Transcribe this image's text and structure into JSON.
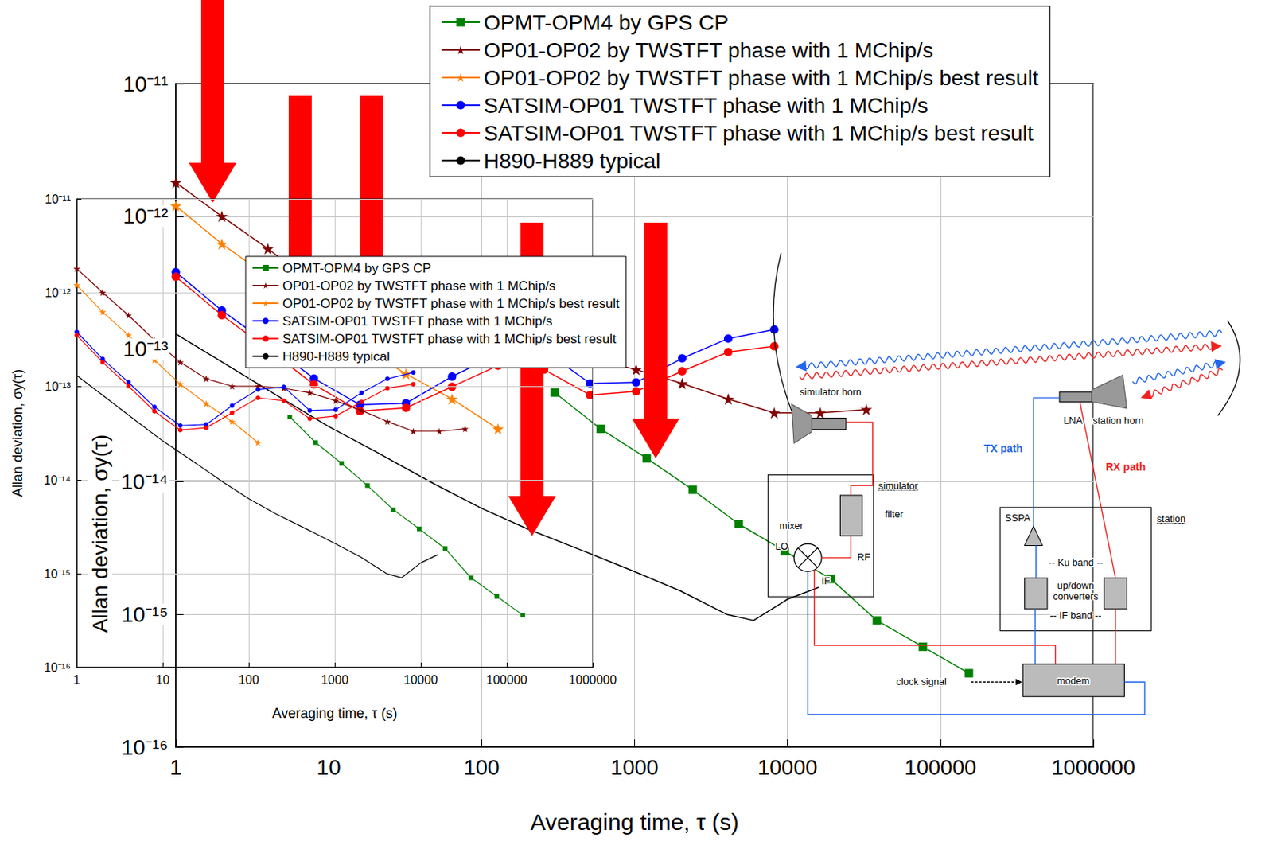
{
  "chart_data": [
    {
      "type": "line",
      "xlabel": "Averaging time, τ (s)",
      "ylabel": "Allan deviation, σy(τ)",
      "log": true,
      "grid": true,
      "legend": "top right",
      "xlim": [
        1,
        1000000
      ],
      "ylim": [
        1e-16,
        1e-11
      ],
      "xticks": [
        1,
        10,
        100,
        1000,
        10000,
        100000,
        1000000
      ],
      "yticks": [
        {
          "value": 1e-16,
          "label": "10⁻¹⁶"
        },
        {
          "value": 1e-15,
          "label": "10⁻¹⁵"
        },
        {
          "value": 1e-14,
          "label": "10⁻¹⁴"
        },
        {
          "value": 1e-13,
          "label": "10⁻¹³"
        },
        {
          "value": 1e-12,
          "label": "10⁻¹²"
        },
        {
          "value": 1e-11,
          "label": "10⁻¹¹"
        }
      ],
      "series": [
        {
          "name": "OPMT-OPM4 by GPS CP",
          "color": "#008000",
          "marker": "square",
          "x": [
            300,
            600,
            1200,
            2400,
            4800,
            9600,
            19200,
            38400,
            76800,
            153600
          ],
          "values": [
            4.7e-14,
            2.5e-14,
            1.5e-14,
            8.7e-15,
            4.8e-15,
            3e-15,
            1.85e-15,
            9e-16,
            5.7e-16,
            3.6e-16
          ]
        },
        {
          "name": "OP01-OP02 by TWSTFT phase with 1 MChip/s",
          "color": "#800000",
          "marker": "star",
          "x": [
            1,
            2,
            4,
            8,
            16,
            32,
            64,
            128,
            256,
            512,
            1024,
            2048,
            4096,
            8192,
            16384,
            32768
          ],
          "values": [
            1.8e-12,
            1e-12,
            5.7e-13,
            3.1e-13,
            1.8e-13,
            1.2e-13,
            1e-13,
            1e-13,
            9.5e-14,
            8.5e-14,
            7e-14,
            5.5e-14,
            4.2e-14,
            3.3e-14,
            3.3e-14,
            3.5e-14
          ]
        },
        {
          "name": "OP01-OP02 by TWSTFT phase with 1 MChip/s best result",
          "color": "#ff8000",
          "marker": "star",
          "x": [
            1,
            2,
            4,
            8,
            16,
            32,
            64,
            128
          ],
          "values": [
            1.2e-12,
            6.2e-13,
            3.5e-13,
            1.9e-13,
            1.05e-13,
            6.5e-14,
            4.2e-14,
            2.5e-14
          ]
        },
        {
          "name": "SATSIM-OP01 TWSTFT phase with 1 MChip/s",
          "color": "#0000ff",
          "marker": "circle",
          "x": [
            1,
            2,
            4,
            8,
            16,
            32,
            64,
            128,
            256,
            512,
            1024,
            2048,
            4096,
            8192
          ],
          "values": [
            3.8e-13,
            1.95e-13,
            1.1e-13,
            6e-14,
            3.8e-14,
            3.9e-14,
            6.2e-14,
            9.2e-14,
            9.8e-14,
            5.5e-14,
            5.6e-14,
            8.5e-14,
            1.2e-13,
            1.4e-13
          ]
        },
        {
          "name": "SATSIM-OP01 TWSTFT phase with 1 MChip/s best result",
          "color": "#ff0000",
          "marker": "circle",
          "x": [
            1,
            2,
            4,
            8,
            16,
            32,
            64,
            128,
            256,
            512,
            1024,
            2048,
            4096,
            8192
          ],
          "values": [
            3.5e-13,
            1.8e-13,
            1e-13,
            5.4e-14,
            3.4e-14,
            3.6e-14,
            5.2e-14,
            7.5e-14,
            7e-14,
            4.5e-14,
            4.8e-14,
            6.8e-14,
            9.5e-14,
            1.05e-13
          ]
        },
        {
          "name": "H890-H889 typical",
          "color": "#000000",
          "marker": "none",
          "x": [
            1,
            2,
            5,
            10,
            20,
            50,
            100,
            200,
            500,
            1000,
            2000,
            4000,
            6000,
            10000,
            16000
          ],
          "values": [
            1.3e-13,
            8e-14,
            4.2e-14,
            2.6e-14,
            1.7e-14,
            9.5e-15,
            6.3e-15,
            4.4e-15,
            2.9e-15,
            2.1e-15,
            1.5e-15,
            1e-15,
            9e-16,
            1.3e-15,
            1.6e-15
          ]
        }
      ]
    },
    {
      "type": "line",
      "xlabel": "Averaging time, τ (s)",
      "ylabel": "Allan deviation, σy(τ)",
      "log": true,
      "grid": true,
      "legend": "top",
      "xlim": [
        1,
        1000000
      ],
      "ylim": [
        1e-16,
        1e-11
      ],
      "xticks": [
        1,
        10,
        100,
        1000,
        10000,
        100000,
        1000000
      ],
      "yticks": [
        {
          "value": 1e-16,
          "label": "10⁻¹⁶"
        },
        {
          "value": 1e-15,
          "label": "10⁻¹⁵"
        },
        {
          "value": 1e-14,
          "label": "10⁻¹⁴"
        },
        {
          "value": 1e-13,
          "label": "10⁻¹³"
        },
        {
          "value": 1e-12,
          "label": "10⁻¹²"
        },
        {
          "value": 1e-11,
          "label": "10⁻¹¹"
        }
      ],
      "series": [
        {
          "name": "OPMT-OPM4 by GPS CP",
          "color": "#008000",
          "marker": "square",
          "x": [
            300,
            600,
            1200,
            2400,
            4800,
            9600,
            19200,
            38400,
            76800,
            153600
          ],
          "values": [
            4.7e-14,
            2.5e-14,
            1.5e-14,
            8.7e-15,
            4.8e-15,
            3e-15,
            1.85e-15,
            9e-16,
            5.7e-16,
            3.6e-16
          ]
        },
        {
          "name": "OP01-OP02 by TWSTFT phase with 1 MChip/s",
          "color": "#800000",
          "marker": "star",
          "x": [
            1,
            2,
            4,
            8,
            16,
            32,
            64,
            128,
            256,
            512,
            1024,
            2048,
            4096,
            8192,
            16384,
            32768
          ],
          "values": [
            1.8e-12,
            1e-12,
            5.7e-13,
            3.1e-13,
            1.8e-13,
            1.2e-13,
            1e-13,
            1e-13,
            9.5e-14,
            8.5e-14,
            7e-14,
            5.5e-14,
            4.2e-14,
            3.3e-14,
            3.3e-14,
            3.5e-14
          ]
        },
        {
          "name": "OP01-OP02 by TWSTFT phase with 1 MChip/s best result",
          "color": "#ff8000",
          "marker": "star",
          "x": [
            1,
            2,
            4,
            8,
            16,
            32,
            64,
            128
          ],
          "values": [
            1.2e-12,
            6.2e-13,
            3.5e-13,
            1.9e-13,
            1.05e-13,
            6.5e-14,
            4.2e-14,
            2.5e-14
          ]
        },
        {
          "name": "SATSIM-OP01 TWSTFT phase with 1 MChip/s",
          "color": "#0000ff",
          "marker": "circle",
          "x": [
            1,
            2,
            4,
            8,
            16,
            32,
            64,
            128,
            256,
            512,
            1024,
            2048,
            4096,
            8192
          ],
          "values": [
            3.8e-13,
            1.95e-13,
            1.1e-13,
            6e-14,
            3.8e-14,
            3.9e-14,
            6.2e-14,
            9.2e-14,
            9.8e-14,
            5.5e-14,
            5.6e-14,
            8.5e-14,
            1.2e-13,
            1.4e-13
          ]
        },
        {
          "name": "SATSIM-OP01 TWSTFT phase with 1 MChip/s best result",
          "color": "#ff0000",
          "marker": "circle",
          "x": [
            1,
            2,
            4,
            8,
            16,
            32,
            64,
            128,
            256,
            512,
            1024,
            2048,
            4096,
            8192
          ],
          "values": [
            3.5e-13,
            1.8e-13,
            1e-13,
            5.4e-14,
            3.4e-14,
            3.6e-14,
            5.2e-14,
            7.5e-14,
            7e-14,
            4.5e-14,
            4.8e-14,
            6.8e-14,
            9.5e-14,
            1.05e-13
          ]
        },
        {
          "name": "H890-H889 typical",
          "color": "#000000",
          "marker": "none",
          "x": [
            1,
            2,
            5,
            10,
            20,
            50,
            100,
            200,
            500,
            1000,
            2000,
            4000,
            6000,
            10000,
            16000
          ],
          "values": [
            1.3e-13,
            8e-14,
            4.2e-14,
            2.6e-14,
            1.7e-14,
            9.5e-15,
            6.3e-15,
            4.4e-15,
            2.9e-15,
            2.1e-15,
            1.5e-15,
            1e-15,
            9e-16,
            1.3e-15,
            1.6e-15
          ]
        }
      ]
    }
  ],
  "diagram": {
    "labels": {
      "simulator_horn": "simulator horn",
      "lna": "LNA",
      "station_horn": "station horn",
      "tx_path": "TX path",
      "rx_path": "RX path",
      "simulator": "simulator",
      "filter": "filter",
      "mixer": "mixer",
      "lo": "LO",
      "rf": "RF",
      "if": "IF",
      "station": "station",
      "sspa": "SSPA",
      "ku_band": "-- Ku band --",
      "converters": "up/down converters",
      "if_band": "-- IF band --",
      "modem": "modem",
      "clock_signal": "clock signal"
    }
  }
}
